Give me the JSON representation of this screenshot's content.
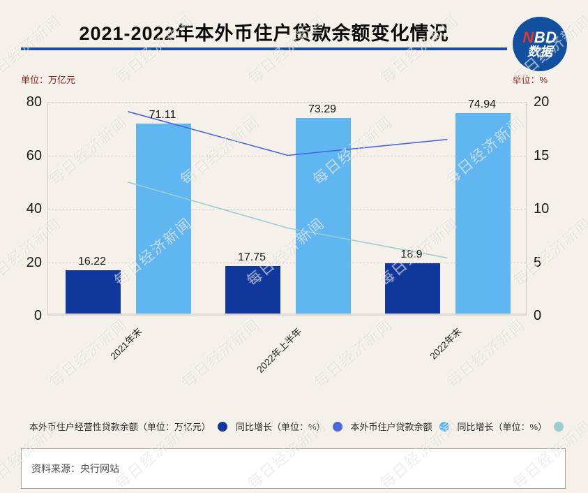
{
  "header": {
    "title": "2021-2022年本外币住户贷款余额变化情况",
    "logo_line1_red": "N",
    "logo_line1_rest": "BD",
    "logo_line2": "数据"
  },
  "chart_data": {
    "type": "bar",
    "title": "2021-2022年本外币住户贷款余额变化情况",
    "categories": [
      "2021年末",
      "2022年上半年",
      "2022年末"
    ],
    "series": [
      {
        "name": "本外币住户经营性贷款余额（单位：万亿元）",
        "type": "bar",
        "axis": "left",
        "color": "#10389c",
        "values": [
          16.22,
          17.75,
          18.9
        ],
        "labels": [
          "16.22",
          "17.75",
          "18.9"
        ]
      },
      {
        "name": "同比增长（单位：%）",
        "type": "line",
        "axis": "right",
        "color": "#4a67dd",
        "values": [
          19.1,
          15.0,
          16.5
        ]
      },
      {
        "name": "本外币住户贷款余额",
        "type": "bar",
        "axis": "left",
        "color": "#5fb6f0",
        "values": [
          71.11,
          73.29,
          74.94
        ],
        "labels": [
          "71.11",
          "73.29",
          "74.94"
        ]
      },
      {
        "name": "同比增长（单位：%）",
        "type": "line",
        "axis": "right",
        "color": "#9bcdd2",
        "values": [
          12.5,
          8.2,
          5.4
        ]
      }
    ],
    "left_axis": {
      "unit": "单位：万亿元",
      "ticks": [
        80,
        60,
        40,
        20,
        0
      ],
      "max": 80
    },
    "right_axis": {
      "unit": "单位：%",
      "ticks": [
        20,
        15,
        10,
        5,
        0
      ],
      "max": 20
    },
    "grid": "dashed-horizontal",
    "legend_position": "bottom"
  },
  "source": {
    "text": "资料来源：央行网站"
  },
  "watermark": {
    "text": "每日经济新闻"
  }
}
